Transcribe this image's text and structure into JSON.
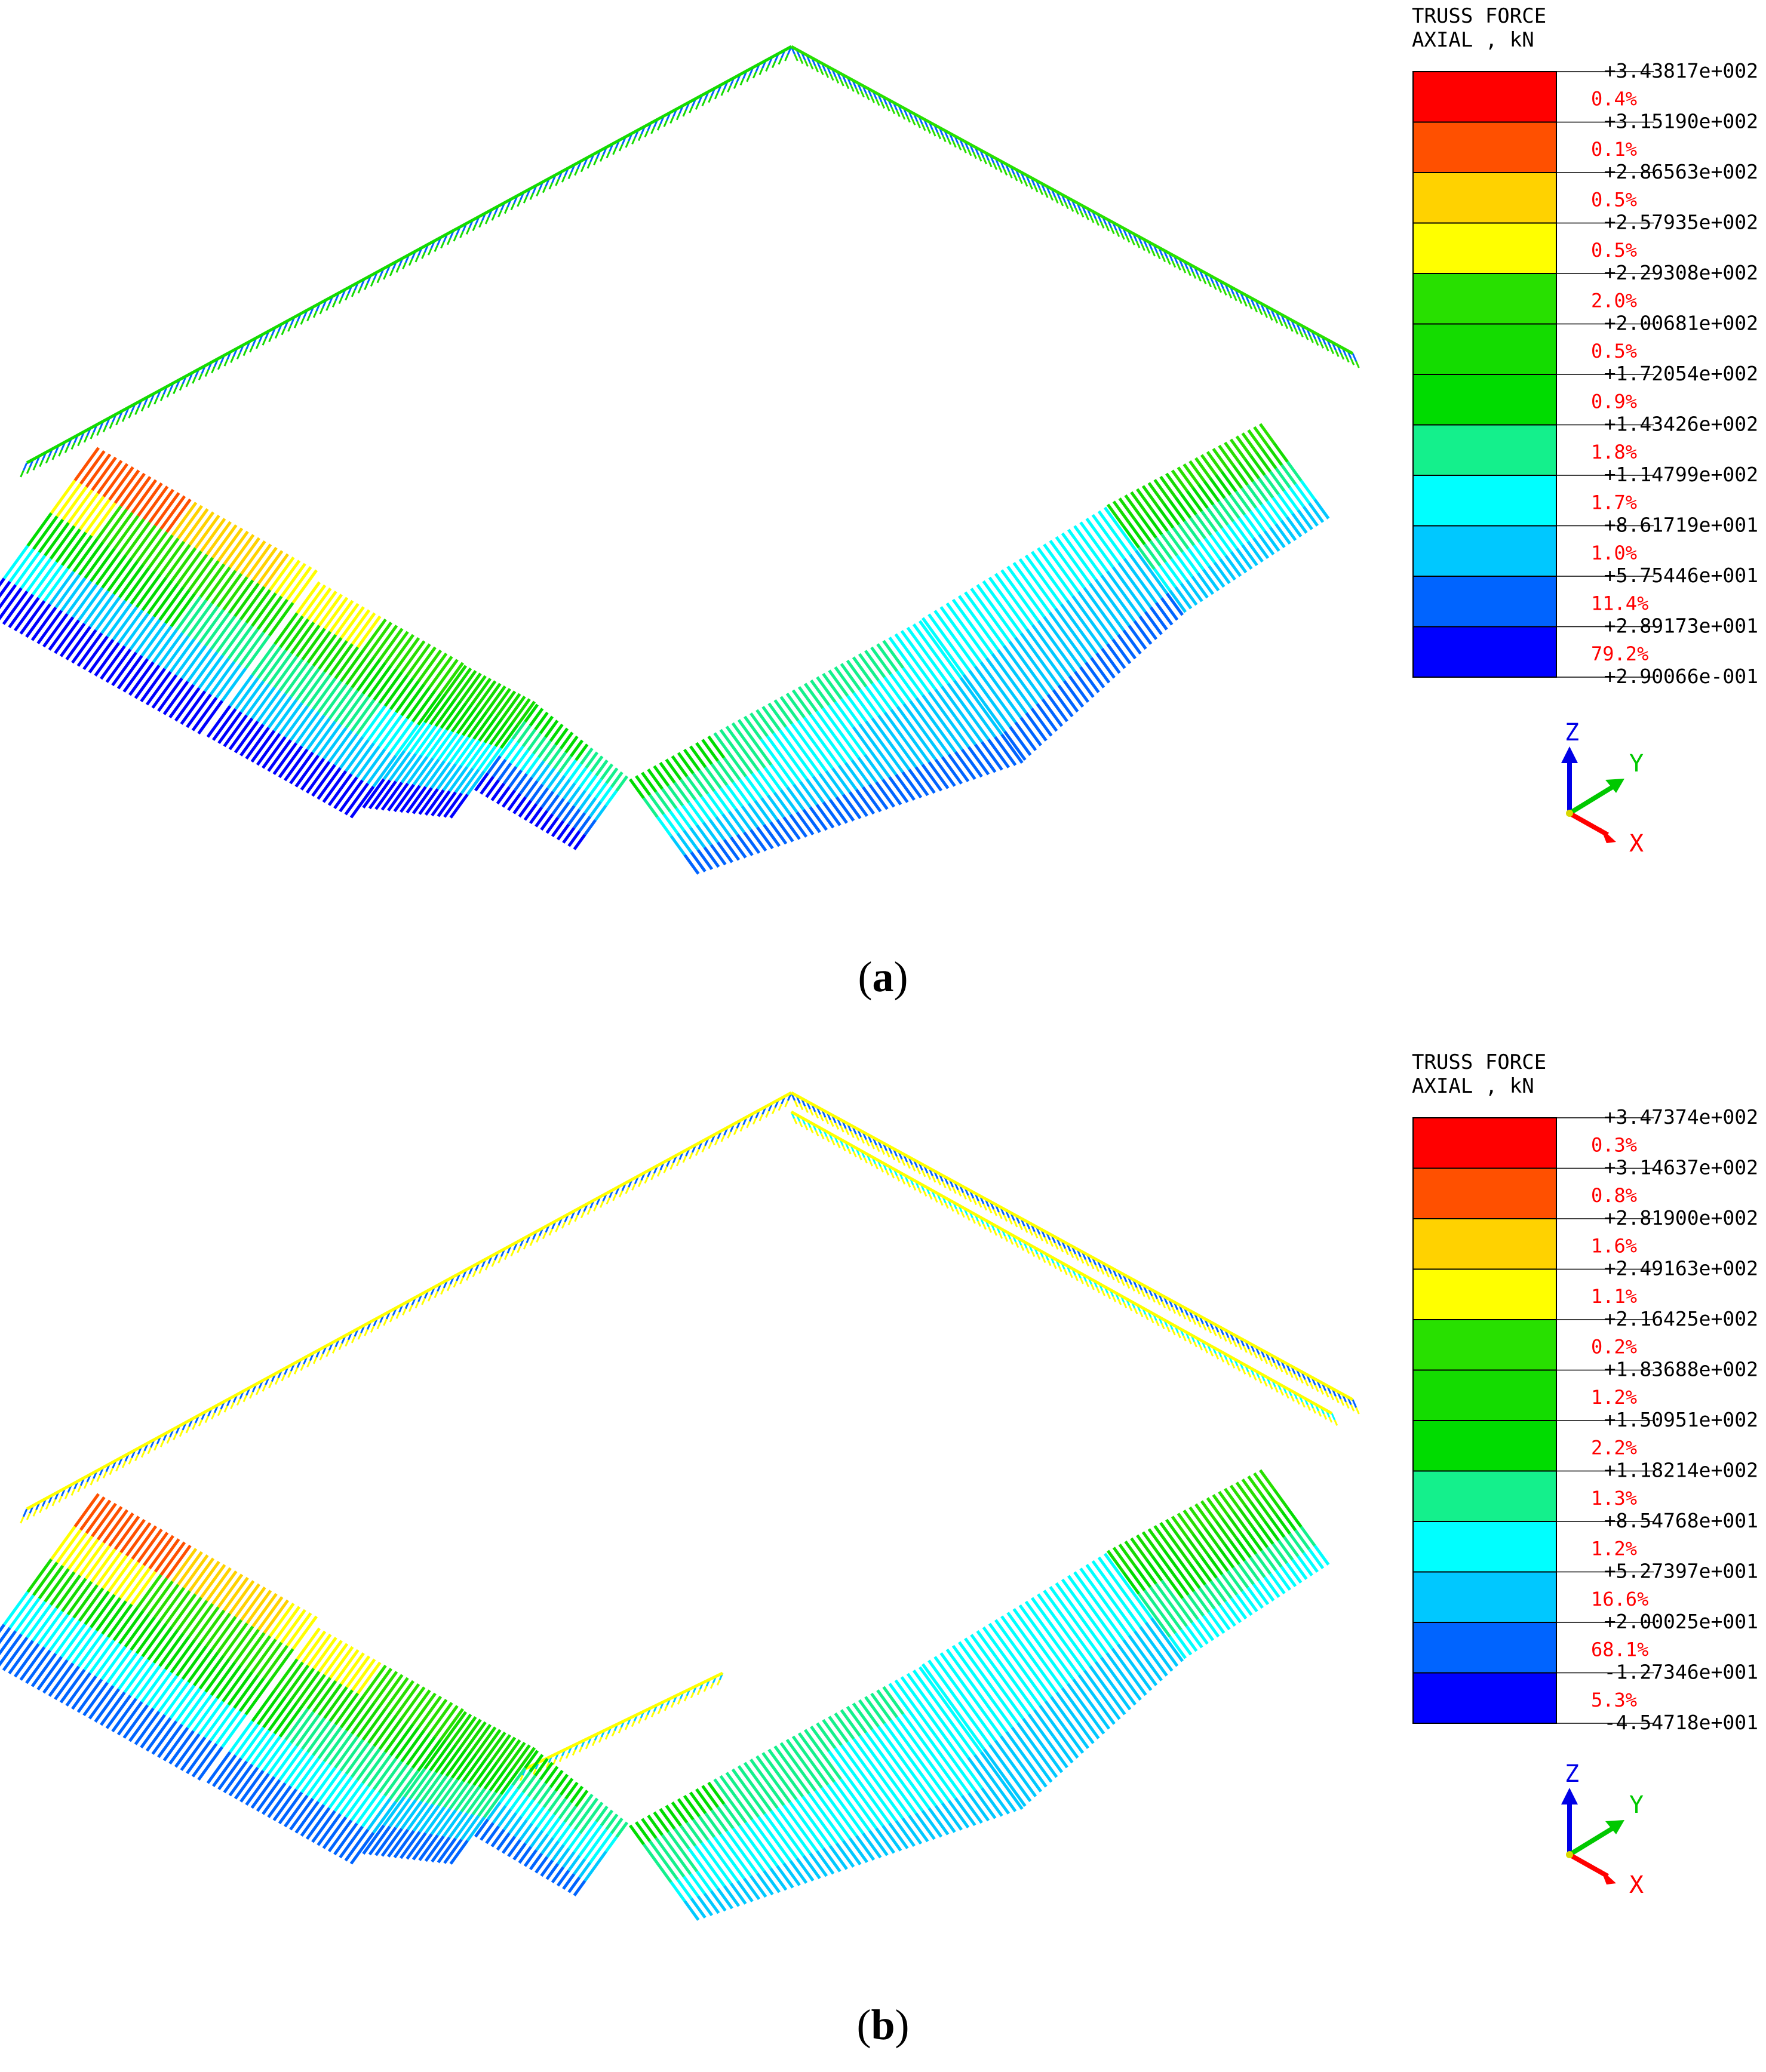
{
  "panels": [
    {
      "id": "a",
      "caption_open": "(",
      "caption_letter": "a",
      "caption_close": ")",
      "legend": {
        "title_line1": "TRUSS FORCE",
        "title_line2": "AXIAL , kN",
        "bounds": [
          "+3.43817e+002",
          "+3.15190e+002",
          "+2.86563e+002",
          "+2.57935e+002",
          "+2.29308e+002",
          "+2.00681e+002",
          "+1.72054e+002",
          "+1.43426e+002",
          "+1.14799e+002",
          "+8.61719e+001",
          "+5.75446e+001",
          "+2.89173e+001",
          "+2.90066e-001"
        ],
        "percents": [
          "0.4%",
          "0.1%",
          "0.5%",
          "0.5%",
          "2.0%",
          "0.5%",
          "0.9%",
          "1.8%",
          "1.7%",
          "1.0%",
          "11.4%",
          "79.2%"
        ]
      }
    },
    {
      "id": "b",
      "caption_open": "(",
      "caption_letter": "b",
      "caption_close": ")",
      "legend": {
        "title_line1": "TRUSS FORCE",
        "title_line2": "AXIAL , kN",
        "bounds": [
          "+3.47374e+002",
          "+3.14637e+002",
          "+2.81900e+002",
          "+2.49163e+002",
          "+2.16425e+002",
          "+1.83688e+002",
          "+1.50951e+002",
          "+1.18214e+002",
          "+8.54768e+001",
          "+5.27397e+001",
          "+2.00025e+001",
          "-1.27346e+001",
          "-4.54718e+001"
        ],
        "percents": [
          "0.3%",
          "0.8%",
          "1.6%",
          "1.1%",
          "0.2%",
          "1.2%",
          "2.2%",
          "1.3%",
          "1.2%",
          "16.6%",
          "68.1%",
          "5.3%"
        ]
      }
    }
  ],
  "colors": {
    "bands": [
      "#ff0000",
      "#ff5000",
      "#ffd200",
      "#ffff00",
      "#28e000",
      "#14dc00",
      "#00dc00",
      "#14f08c",
      "#00ffff",
      "#00c8ff",
      "#0064ff",
      "#0000ff"
    ],
    "percent_text": "#ff0000",
    "axis_x": "#ff0000",
    "axis_y": "#00c800",
    "axis_z": "#0000e6"
  },
  "axes": {
    "z": "Z",
    "y": "Y",
    "x": "X"
  }
}
